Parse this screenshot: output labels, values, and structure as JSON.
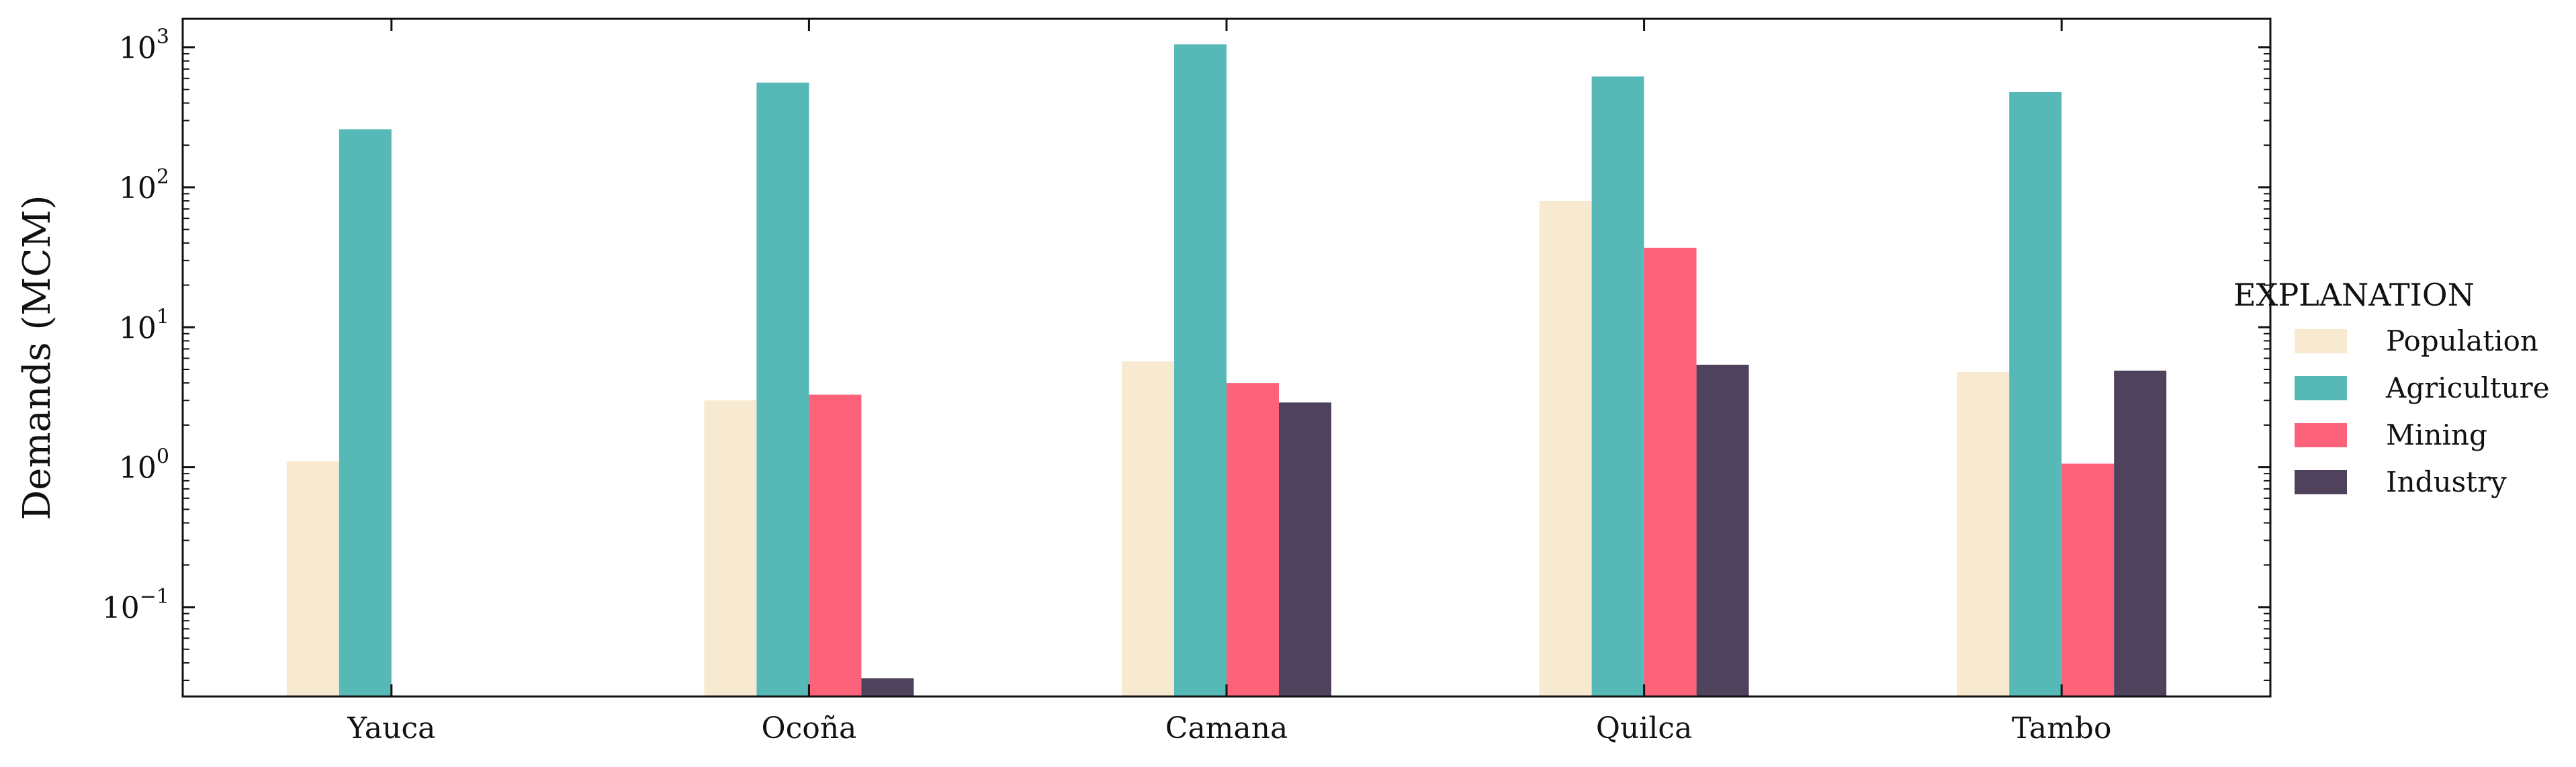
{
  "chart_data": {
    "type": "bar",
    "yscale": "log",
    "ylim": [
      0.023,
      1600
    ],
    "ylabel": "Demands (MCM)",
    "xlabel": "",
    "grid": false,
    "legend_position": "right",
    "legend_title": "EXPLANATION",
    "categories": [
      "Yauca",
      "Ocoña",
      "Camana",
      "Quilca",
      "Tambo"
    ],
    "yticks": [
      {
        "value": 0.1,
        "base": "10",
        "exp": "−1"
      },
      {
        "value": 1,
        "base": "10",
        "exp": "0"
      },
      {
        "value": 10,
        "base": "10",
        "exp": "1"
      },
      {
        "value": 100,
        "base": "10",
        "exp": "2"
      },
      {
        "value": 1000,
        "base": "10",
        "exp": "3"
      }
    ],
    "series": [
      {
        "name": "Population",
        "color": "#F8EAD0",
        "values": [
          1.1,
          3.0,
          5.7,
          80,
          4.8
        ]
      },
      {
        "name": "Agriculture",
        "color": "#56B9B7",
        "values": [
          260,
          560,
          1050,
          620,
          480
        ]
      },
      {
        "name": "Mining",
        "color": "#FC637B",
        "values": [
          null,
          3.3,
          4.0,
          37,
          1.06
        ]
      },
      {
        "name": "Industry",
        "color": "#4E425D",
        "values": [
          null,
          0.031,
          2.9,
          5.4,
          4.9
        ]
      }
    ]
  }
}
